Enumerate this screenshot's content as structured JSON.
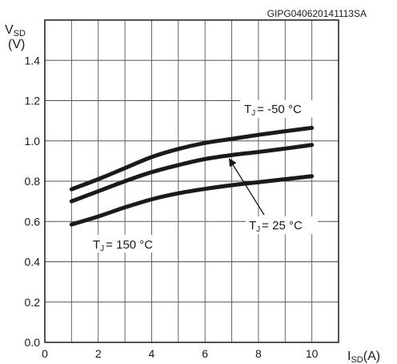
{
  "figure_code": "GIPG040620141113SA",
  "chart_data": {
    "type": "line",
    "x_axis": {
      "label_main": "I",
      "label_sub": "SD",
      "label_unit": "(A)",
      "range": [
        0,
        11
      ],
      "ticks": [
        0,
        2,
        4,
        6,
        8,
        10
      ]
    },
    "y_axis": {
      "label_main": "V",
      "label_sub": "SD",
      "label_unit": "(V)",
      "range": [
        0,
        1.6
      ],
      "ticks": [
        "0.0",
        "0.2",
        "0.4",
        "0.6",
        "0.8",
        "1.0",
        "1.2",
        "1.4"
      ]
    },
    "grid": true,
    "series": [
      {
        "name": "T J = -50 °C",
        "label_main": "T",
        "label_sub": "J",
        "label_rest": "= -50 °C",
        "x": [
          1,
          2,
          3,
          4,
          5,
          6,
          7,
          8,
          9,
          10
        ],
        "y": [
          0.76,
          0.81,
          0.865,
          0.92,
          0.96,
          0.99,
          1.01,
          1.03,
          1.048,
          1.065
        ]
      },
      {
        "name": "T J = 25 °C",
        "label_main": "T",
        "label_sub": "J",
        "label_rest": "= 25 °C",
        "x": [
          1,
          2,
          3,
          4,
          5,
          6,
          7,
          8,
          9,
          10
        ],
        "y": [
          0.7,
          0.75,
          0.8,
          0.845,
          0.88,
          0.91,
          0.93,
          0.945,
          0.962,
          0.98
        ]
      },
      {
        "name": "T J = 150 °C",
        "label_main": "T",
        "label_sub": "J",
        "label_rest": "= 150 °C",
        "x": [
          1,
          2,
          3,
          4,
          5,
          6,
          7,
          8,
          9,
          10
        ],
        "y": [
          0.585,
          0.625,
          0.67,
          0.71,
          0.74,
          0.762,
          0.78,
          0.795,
          0.81,
          0.825
        ]
      }
    ],
    "line_color": "#1a1a1a",
    "grid_color": "#555555"
  }
}
